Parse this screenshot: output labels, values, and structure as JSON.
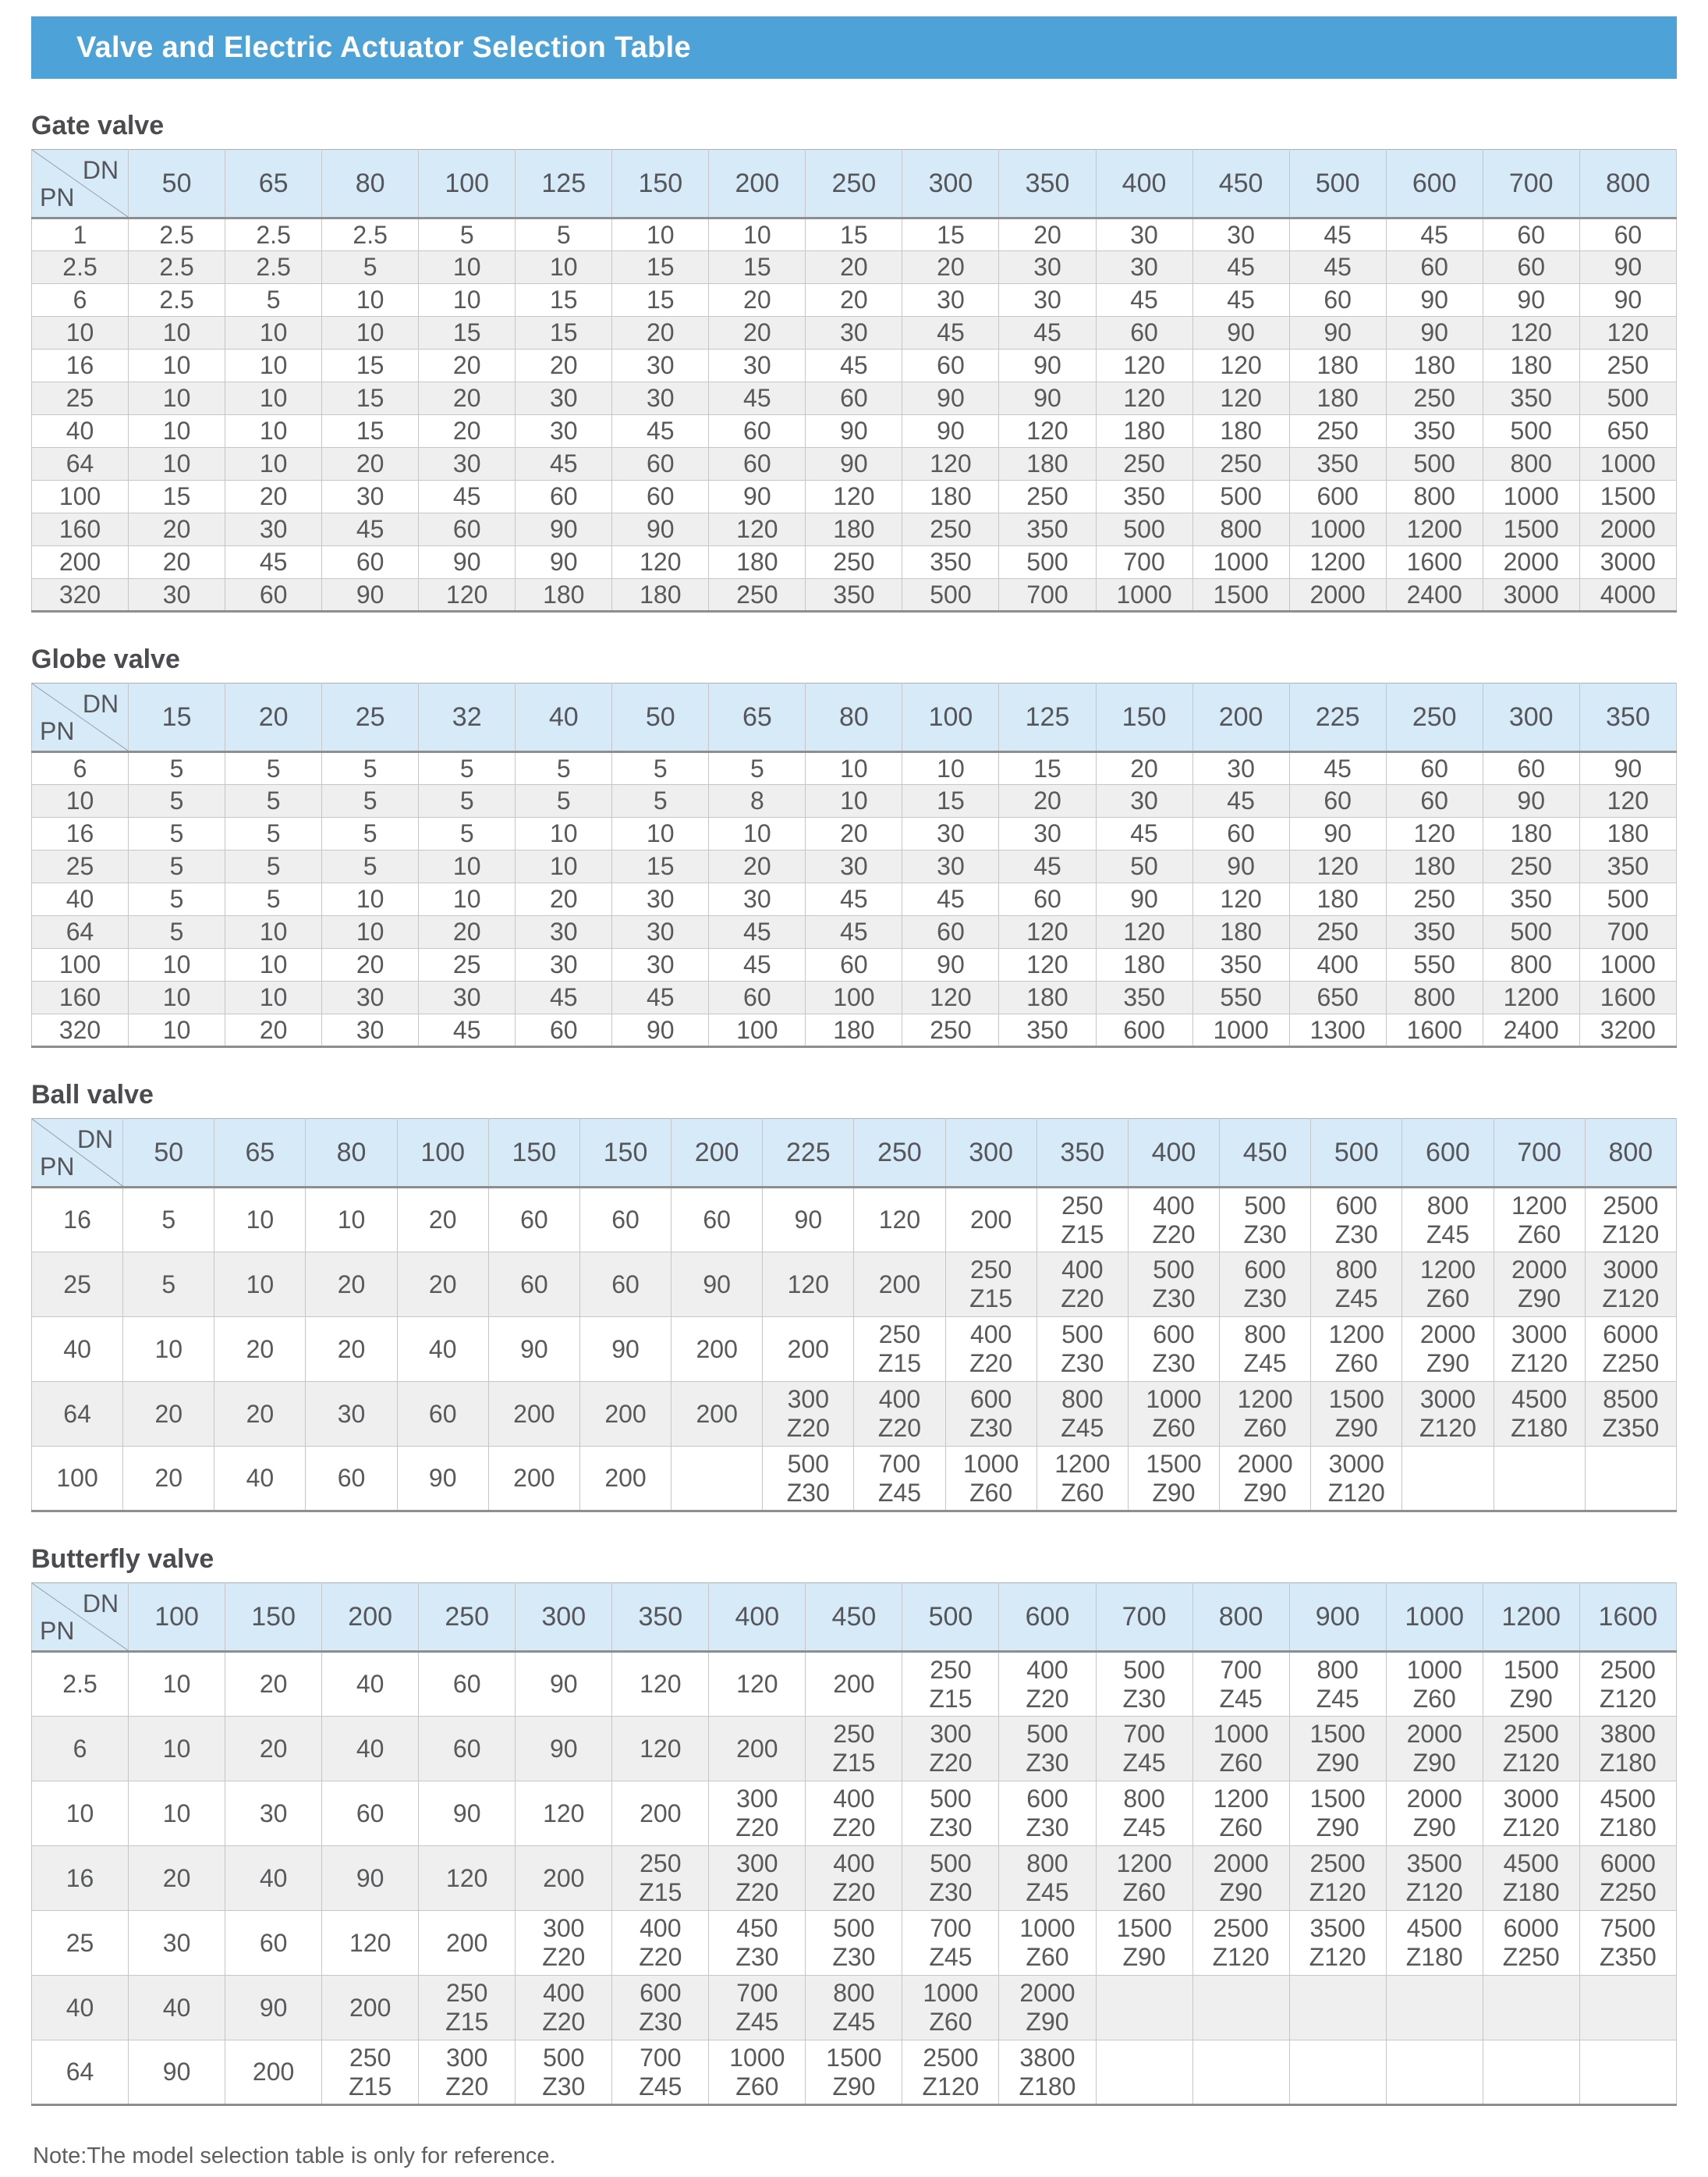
{
  "page": {
    "title": "Valve and Electric Actuator Selection Table",
    "note": "Note:The model selection table is only for reference.",
    "corner_dn": "DN",
    "corner_pn": "PN"
  },
  "colors": {
    "banner_bg": "#4DA2D7",
    "banner_text": "#FFFFFF",
    "table_header_bg": "#D6EAF8",
    "row_alt_bg": "#EFEFEF",
    "text": "#58595B",
    "strong_line": "#8E8E8E",
    "grid_line": "#C6C6C6"
  },
  "tables": [
    {
      "title": "Gate valve",
      "dn": [
        "50",
        "65",
        "80",
        "100",
        "125",
        "150",
        "200",
        "250",
        "300",
        "350",
        "400",
        "450",
        "500",
        "600",
        "700",
        "800"
      ],
      "rows": [
        {
          "pn": "1",
          "cells": [
            "2.5",
            "2.5",
            "2.5",
            "5",
            "5",
            "10",
            "10",
            "15",
            "15",
            "20",
            "30",
            "30",
            "45",
            "45",
            "60",
            "60"
          ]
        },
        {
          "pn": "2.5",
          "cells": [
            "2.5",
            "2.5",
            "5",
            "10",
            "10",
            "15",
            "15",
            "20",
            "20",
            "30",
            "30",
            "45",
            "45",
            "60",
            "60",
            "90"
          ]
        },
        {
          "pn": "6",
          "cells": [
            "2.5",
            "5",
            "10",
            "10",
            "15",
            "15",
            "20",
            "20",
            "30",
            "30",
            "45",
            "45",
            "60",
            "90",
            "90",
            "90"
          ]
        },
        {
          "pn": "10",
          "cells": [
            "10",
            "10",
            "10",
            "15",
            "15",
            "20",
            "20",
            "30",
            "45",
            "45",
            "60",
            "90",
            "90",
            "90",
            "120",
            "120"
          ]
        },
        {
          "pn": "16",
          "cells": [
            "10",
            "10",
            "15",
            "20",
            "20",
            "30",
            "30",
            "45",
            "60",
            "90",
            "120",
            "120",
            "180",
            "180",
            "180",
            "250"
          ]
        },
        {
          "pn": "25",
          "cells": [
            "10",
            "10",
            "15",
            "20",
            "30",
            "30",
            "45",
            "60",
            "90",
            "90",
            "120",
            "120",
            "180",
            "250",
            "350",
            "500"
          ]
        },
        {
          "pn": "40",
          "cells": [
            "10",
            "10",
            "15",
            "20",
            "30",
            "45",
            "60",
            "90",
            "90",
            "120",
            "180",
            "180",
            "250",
            "350",
            "500",
            "650"
          ]
        },
        {
          "pn": "64",
          "cells": [
            "10",
            "10",
            "20",
            "30",
            "45",
            "60",
            "60",
            "90",
            "120",
            "180",
            "250",
            "250",
            "350",
            "500",
            "800",
            "1000"
          ]
        },
        {
          "pn": "100",
          "cells": [
            "15",
            "20",
            "30",
            "45",
            "60",
            "60",
            "90",
            "120",
            "180",
            "250",
            "350",
            "500",
            "600",
            "800",
            "1000",
            "1500"
          ]
        },
        {
          "pn": "160",
          "cells": [
            "20",
            "30",
            "45",
            "60",
            "90",
            "90",
            "120",
            "180",
            "250",
            "350",
            "500",
            "800",
            "1000",
            "1200",
            "1500",
            "2000"
          ]
        },
        {
          "pn": "200",
          "cells": [
            "20",
            "45",
            "60",
            "90",
            "90",
            "120",
            "180",
            "250",
            "350",
            "500",
            "700",
            "1000",
            "1200",
            "1600",
            "2000",
            "3000"
          ]
        },
        {
          "pn": "320",
          "cells": [
            "30",
            "60",
            "90",
            "120",
            "180",
            "180",
            "250",
            "350",
            "500",
            "700",
            "1000",
            "1500",
            "2000",
            "2400",
            "3000",
            "4000"
          ]
        }
      ]
    },
    {
      "title": "Globe valve",
      "dn": [
        "15",
        "20",
        "25",
        "32",
        "40",
        "50",
        "65",
        "80",
        "100",
        "125",
        "150",
        "200",
        "225",
        "250",
        "300",
        "350"
      ],
      "rows": [
        {
          "pn": "6",
          "cells": [
            "5",
            "5",
            "5",
            "5",
            "5",
            "5",
            "5",
            "10",
            "10",
            "15",
            "20",
            "30",
            "45",
            "60",
            "60",
            "90"
          ]
        },
        {
          "pn": "10",
          "cells": [
            "5",
            "5",
            "5",
            "5",
            "5",
            "5",
            "8",
            "10",
            "15",
            "20",
            "30",
            "45",
            "60",
            "60",
            "90",
            "120"
          ]
        },
        {
          "pn": "16",
          "cells": [
            "5",
            "5",
            "5",
            "5",
            "10",
            "10",
            "10",
            "20",
            "30",
            "30",
            "45",
            "60",
            "90",
            "120",
            "180",
            "180"
          ]
        },
        {
          "pn": "25",
          "cells": [
            "5",
            "5",
            "5",
            "10",
            "10",
            "15",
            "20",
            "30",
            "30",
            "45",
            "50",
            "90",
            "120",
            "180",
            "250",
            "350"
          ]
        },
        {
          "pn": "40",
          "cells": [
            "5",
            "5",
            "10",
            "10",
            "20",
            "30",
            "30",
            "45",
            "45",
            "60",
            "90",
            "120",
            "180",
            "250",
            "350",
            "500"
          ]
        },
        {
          "pn": "64",
          "cells": [
            "5",
            "10",
            "10",
            "20",
            "30",
            "30",
            "45",
            "45",
            "60",
            "120",
            "120",
            "180",
            "250",
            "350",
            "500",
            "700"
          ]
        },
        {
          "pn": "100",
          "cells": [
            "10",
            "10",
            "20",
            "25",
            "30",
            "30",
            "45",
            "60",
            "90",
            "120",
            "180",
            "350",
            "400",
            "550",
            "800",
            "1000"
          ]
        },
        {
          "pn": "160",
          "cells": [
            "10",
            "10",
            "30",
            "30",
            "45",
            "45",
            "60",
            "100",
            "120",
            "180",
            "350",
            "550",
            "650",
            "800",
            "1200",
            "1600"
          ]
        },
        {
          "pn": "320",
          "cells": [
            "10",
            "20",
            "30",
            "45",
            "60",
            "90",
            "100",
            "180",
            "250",
            "350",
            "600",
            "1000",
            "1300",
            "1600",
            "2400",
            "3200"
          ]
        }
      ]
    },
    {
      "title": "Ball valve",
      "dn": [
        "50",
        "65",
        "80",
        "100",
        "150",
        "150",
        "200",
        "225",
        "250",
        "300",
        "350",
        "400",
        "450",
        "500",
        "600",
        "700",
        "800"
      ],
      "rows": [
        {
          "pn": "16",
          "cells": [
            "5",
            "10",
            "10",
            "20",
            "60",
            "60",
            "60",
            "90",
            "120",
            "200",
            [
              "250",
              "Z15"
            ],
            [
              "400",
              "Z20"
            ],
            [
              "500",
              "Z30"
            ],
            [
              "600",
              "Z30"
            ],
            [
              "800",
              "Z45"
            ],
            [
              "1200",
              "Z60"
            ],
            [
              "2500",
              "Z120"
            ]
          ]
        },
        {
          "pn": "25",
          "cells": [
            "5",
            "10",
            "20",
            "20",
            "60",
            "60",
            "90",
            "120",
            "200",
            [
              "250",
              "Z15"
            ],
            [
              "400",
              "Z20"
            ],
            [
              "500",
              "Z30"
            ],
            [
              "600",
              "Z30"
            ],
            [
              "800",
              "Z45"
            ],
            [
              "1200",
              "Z60"
            ],
            [
              "2000",
              "Z90"
            ],
            [
              "3000",
              "Z120"
            ]
          ]
        },
        {
          "pn": "40",
          "cells": [
            "10",
            "20",
            "20",
            "40",
            "90",
            "90",
            "200",
            "200",
            [
              "250",
              "Z15"
            ],
            [
              "400",
              "Z20"
            ],
            [
              "500",
              "Z30"
            ],
            [
              "600",
              "Z30"
            ],
            [
              "800",
              "Z45"
            ],
            [
              "1200",
              "Z60"
            ],
            [
              "2000",
              "Z90"
            ],
            [
              "3000",
              "Z120"
            ],
            [
              "6000",
              "Z250"
            ]
          ]
        },
        {
          "pn": "64",
          "cells": [
            "20",
            "20",
            "30",
            "60",
            "200",
            "200",
            "200",
            [
              "300",
              "Z20"
            ],
            [
              "400",
              "Z20"
            ],
            [
              "600",
              "Z30"
            ],
            [
              "800",
              "Z45"
            ],
            [
              "1000",
              "Z60"
            ],
            [
              "1200",
              "Z60"
            ],
            [
              "1500",
              "Z90"
            ],
            [
              "3000",
              "Z120"
            ],
            [
              "4500",
              "Z180"
            ],
            [
              "8500",
              "Z350"
            ]
          ]
        },
        {
          "pn": "100",
          "cells": [
            "20",
            "40",
            "60",
            "90",
            "200",
            "200",
            "",
            [
              "500",
              "Z30"
            ],
            [
              "700",
              "Z45"
            ],
            [
              "1000",
              "Z60"
            ],
            [
              "1200",
              "Z60"
            ],
            [
              "1500",
              "Z90"
            ],
            [
              "2000",
              "Z90"
            ],
            [
              "3000",
              "Z120"
            ],
            "",
            "",
            ""
          ]
        }
      ]
    },
    {
      "title": "Butterfly valve",
      "dn": [
        "100",
        "150",
        "200",
        "250",
        "300",
        "350",
        "400",
        "450",
        "500",
        "600",
        "700",
        "800",
        "900",
        "1000",
        "1200",
        "1600"
      ],
      "rows": [
        {
          "pn": "2.5",
          "cells": [
            "10",
            "20",
            "40",
            "60",
            "90",
            "120",
            "120",
            "200",
            [
              "250",
              "Z15"
            ],
            [
              "400",
              "Z20"
            ],
            [
              "500",
              "Z30"
            ],
            [
              "700",
              "Z45"
            ],
            [
              "800",
              "Z45"
            ],
            [
              "1000",
              "Z60"
            ],
            [
              "1500",
              "Z90"
            ],
            [
              "2500",
              "Z120"
            ]
          ]
        },
        {
          "pn": "6",
          "cells": [
            "10",
            "20",
            "40",
            "60",
            "90",
            "120",
            "200",
            [
              "250",
              "Z15"
            ],
            [
              "300",
              "Z20"
            ],
            [
              "500",
              "Z30"
            ],
            [
              "700",
              "Z45"
            ],
            [
              "1000",
              "Z60"
            ],
            [
              "1500",
              "Z90"
            ],
            [
              "2000",
              "Z90"
            ],
            [
              "2500",
              "Z120"
            ],
            [
              "3800",
              "Z180"
            ]
          ]
        },
        {
          "pn": "10",
          "cells": [
            "10",
            "30",
            "60",
            "90",
            "120",
            "200",
            [
              "300",
              "Z20"
            ],
            [
              "400",
              "Z20"
            ],
            [
              "500",
              "Z30"
            ],
            [
              "600",
              "Z30"
            ],
            [
              "800",
              "Z45"
            ],
            [
              "1200",
              "Z60"
            ],
            [
              "1500",
              "Z90"
            ],
            [
              "2000",
              "Z90"
            ],
            [
              "3000",
              "Z120"
            ],
            [
              "4500",
              "Z180"
            ]
          ]
        },
        {
          "pn": "16",
          "cells": [
            "20",
            "40",
            "90",
            "120",
            "200",
            [
              "250",
              "Z15"
            ],
            [
              "300",
              "Z20"
            ],
            [
              "400",
              "Z20"
            ],
            [
              "500",
              "Z30"
            ],
            [
              "800",
              "Z45"
            ],
            [
              "1200",
              "Z60"
            ],
            [
              "2000",
              "Z90"
            ],
            [
              "2500",
              "Z120"
            ],
            [
              "3500",
              "Z120"
            ],
            [
              "4500",
              "Z180"
            ],
            [
              "6000",
              "Z250"
            ]
          ]
        },
        {
          "pn": "25",
          "cells": [
            "30",
            "60",
            "120",
            "200",
            [
              "300",
              "Z20"
            ],
            [
              "400",
              "Z20"
            ],
            [
              "450",
              "Z30"
            ],
            [
              "500",
              "Z30"
            ],
            [
              "700",
              "Z45"
            ],
            [
              "1000",
              "Z60"
            ],
            [
              "1500",
              "Z90"
            ],
            [
              "2500",
              "Z120"
            ],
            [
              "3500",
              "Z120"
            ],
            [
              "4500",
              "Z180"
            ],
            [
              "6000",
              "Z250"
            ],
            [
              "7500",
              "Z350"
            ]
          ]
        },
        {
          "pn": "40",
          "cells": [
            "40",
            "90",
            "200",
            [
              "250",
              "Z15"
            ],
            [
              "400",
              "Z20"
            ],
            [
              "600",
              "Z30"
            ],
            [
              "700",
              "Z45"
            ],
            [
              "800",
              "Z45"
            ],
            [
              "1000",
              "Z60"
            ],
            [
              "2000",
              "Z90"
            ],
            "",
            "",
            "",
            "",
            "",
            ""
          ]
        },
        {
          "pn": "64",
          "cells": [
            "90",
            "200",
            [
              "250",
              "Z15"
            ],
            [
              "300",
              "Z20"
            ],
            [
              "500",
              "Z30"
            ],
            [
              "700",
              "Z45"
            ],
            [
              "1000",
              "Z60"
            ],
            [
              "1500",
              "Z90"
            ],
            [
              "2500",
              "Z120"
            ],
            [
              "3800",
              "Z180"
            ],
            "",
            "",
            "",
            "",
            "",
            ""
          ]
        }
      ]
    }
  ]
}
